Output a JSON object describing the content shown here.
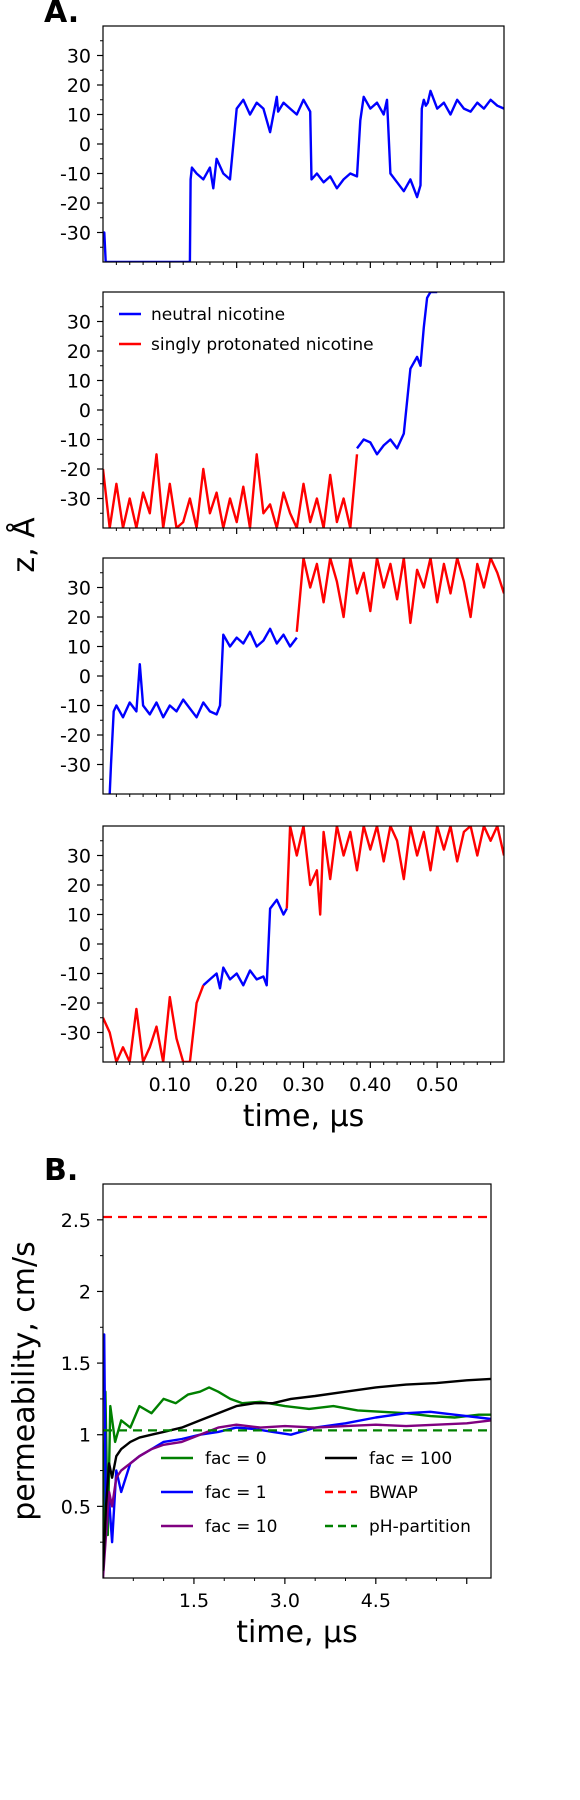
{
  "chart_data": [
    {
      "type": "line",
      "panel_label": "A.",
      "xlim": [
        0,
        0.6
      ],
      "ylim": [
        -40,
        40
      ],
      "yticks": [
        "-30",
        "-20",
        "-10",
        "0",
        "10",
        "20",
        "30"
      ],
      "series": [
        {
          "name": "neutral nicotine",
          "color": "#0000ff",
          "x": [
            0.0,
            0.002,
            0.004,
            0.13,
            0.131,
            0.133,
            0.14,
            0.15,
            0.16,
            0.165,
            0.17,
            0.18,
            0.19,
            0.2,
            0.21,
            0.22,
            0.23,
            0.24,
            0.25,
            0.26,
            0.262,
            0.27,
            0.28,
            0.29,
            0.3,
            0.31,
            0.312,
            0.32,
            0.33,
            0.34,
            0.35,
            0.36,
            0.37,
            0.38,
            0.385,
            0.39,
            0.4,
            0.41,
            0.42,
            0.425,
            0.43,
            0.44,
            0.45,
            0.46,
            0.47,
            0.475,
            0.477,
            0.48,
            0.483,
            0.486,
            0.49,
            0.5,
            0.51,
            0.52,
            0.53,
            0.54,
            0.55,
            0.56,
            0.57,
            0.58,
            0.59,
            0.6
          ],
          "y": [
            -32,
            -30,
            -40,
            -40,
            -12,
            -8,
            -10,
            -12,
            -8,
            -15,
            -5,
            -10,
            -12,
            12,
            15,
            10,
            14,
            12,
            4,
            16,
            11,
            14,
            12,
            10,
            15,
            11,
            -12,
            -10,
            -13,
            -11,
            -15,
            -12,
            -10,
            -11,
            8,
            16,
            12,
            14,
            10,
            15,
            -10,
            -13,
            -16,
            -12,
            -18,
            -14,
            12,
            15,
            13,
            14,
            18,
            12,
            14,
            10,
            15,
            12,
            11,
            14,
            12,
            15,
            13,
            12
          ]
        }
      ]
    },
    {
      "type": "line",
      "xlim": [
        0,
        0.6
      ],
      "ylim": [
        -40,
        40
      ],
      "yticks": [
        "-30",
        "-20",
        "-10",
        "0",
        "10",
        "20",
        "30"
      ],
      "legend": "top-left",
      "series": [
        {
          "name": "neutral nicotine",
          "color": "#0000ff",
          "x": [
            0.38,
            0.39,
            0.4,
            0.41,
            0.42,
            0.43,
            0.44,
            0.45,
            0.46,
            0.47,
            0.475,
            0.48,
            0.485,
            0.49,
            0.5
          ],
          "y": [
            -13,
            -10,
            -11,
            -15,
            -12,
            -10,
            -13,
            -8,
            14,
            18,
            15,
            28,
            38,
            40,
            40
          ]
        },
        {
          "name": "singly protonated nicotine",
          "color": "#ff0000",
          "x": [
            0.0,
            0.01,
            0.02,
            0.03,
            0.04,
            0.05,
            0.06,
            0.07,
            0.08,
            0.09,
            0.1,
            0.11,
            0.12,
            0.13,
            0.14,
            0.15,
            0.16,
            0.17,
            0.18,
            0.19,
            0.2,
            0.21,
            0.22,
            0.23,
            0.24,
            0.25,
            0.26,
            0.27,
            0.28,
            0.29,
            0.3,
            0.31,
            0.32,
            0.33,
            0.34,
            0.35,
            0.36,
            0.37,
            0.38
          ],
          "y": [
            -20,
            -40,
            -25,
            -40,
            -30,
            -40,
            -28,
            -35,
            -15,
            -40,
            -25,
            -40,
            -38,
            -30,
            -40,
            -20,
            -35,
            -28,
            -40,
            -30,
            -38,
            -26,
            -40,
            -15,
            -35,
            -32,
            -40,
            -28,
            -35,
            -40,
            -25,
            -38,
            -30,
            -40,
            -22,
            -38,
            -30,
            -40,
            -15
          ]
        }
      ]
    },
    {
      "type": "line",
      "xlim": [
        0,
        0.6
      ],
      "ylim": [
        -40,
        40
      ],
      "yticks": [
        "-30",
        "-20",
        "-10",
        "0",
        "10",
        "20",
        "30"
      ],
      "series": [
        {
          "name": "neutral nicotine",
          "color": "#0000ff",
          "x": [
            0.01,
            0.012,
            0.016,
            0.02,
            0.03,
            0.04,
            0.05,
            0.055,
            0.06,
            0.07,
            0.08,
            0.09,
            0.1,
            0.11,
            0.12,
            0.13,
            0.14,
            0.15,
            0.16,
            0.17,
            0.175,
            0.18,
            0.19,
            0.2,
            0.21,
            0.22,
            0.23,
            0.24,
            0.25,
            0.26,
            0.27,
            0.28,
            0.29
          ],
          "y": [
            -40,
            -30,
            -12,
            -10,
            -14,
            -9,
            -12,
            4,
            -10,
            -13,
            -9,
            -14,
            -10,
            -12,
            -8,
            -11,
            -14,
            -9,
            -12,
            -13,
            -10,
            14,
            10,
            13,
            11,
            15,
            10,
            12,
            16,
            11,
            14,
            10,
            13
          ]
        },
        {
          "name": "singly protonated nicotine",
          "color": "#ff0000",
          "x": [
            0.29,
            0.3,
            0.31,
            0.32,
            0.33,
            0.34,
            0.35,
            0.36,
            0.37,
            0.38,
            0.39,
            0.4,
            0.41,
            0.42,
            0.43,
            0.44,
            0.45,
            0.46,
            0.47,
            0.48,
            0.49,
            0.5,
            0.51,
            0.52,
            0.53,
            0.54,
            0.55,
            0.56,
            0.57,
            0.58,
            0.59,
            0.6
          ],
          "y": [
            15,
            40,
            30,
            38,
            25,
            40,
            32,
            20,
            40,
            28,
            35,
            22,
            40,
            30,
            38,
            26,
            40,
            18,
            36,
            30,
            40,
            25,
            38,
            28,
            40,
            32,
            20,
            38,
            30,
            40,
            35,
            28
          ]
        }
      ]
    },
    {
      "type": "line",
      "xlim": [
        0,
        0.6
      ],
      "ylim": [
        -40,
        40
      ],
      "xticks": [
        "0.10",
        "0.20",
        "0.30",
        "0.40",
        "0.50"
      ],
      "yticks": [
        "-30",
        "-20",
        "-10",
        "0",
        "10",
        "20",
        "30"
      ],
      "xlabel": "time, μs",
      "series": [
        {
          "name": "neutral nicotine",
          "color": "#0000ff",
          "x": [
            0.15,
            0.16,
            0.17,
            0.175,
            0.18,
            0.19,
            0.2,
            0.21,
            0.22,
            0.23,
            0.24,
            0.245,
            0.25,
            0.26,
            0.27,
            0.275
          ],
          "y": [
            -14,
            -12,
            -10,
            -15,
            -8,
            -12,
            -10,
            -14,
            -9,
            -12,
            -11,
            -14,
            12,
            15,
            10,
            12
          ]
        },
        {
          "name": "singly protonated nicotine",
          "color": "#ff0000",
          "x": [
            0.0,
            0.01,
            0.02,
            0.03,
            0.04,
            0.05,
            0.06,
            0.07,
            0.08,
            0.09,
            0.1,
            0.11,
            0.12,
            0.13,
            0.14,
            0.15
          ],
          "y": [
            -25,
            -30,
            -40,
            -35,
            -40,
            -22,
            -40,
            -35,
            -28,
            -40,
            -18,
            -32,
            -40,
            -40,
            -20,
            -14
          ]
        },
        {
          "name": "singly protonated nicotine",
          "color": "#ff0000",
          "x": [
            0.275,
            0.28,
            0.29,
            0.3,
            0.31,
            0.32,
            0.325,
            0.33,
            0.34,
            0.35,
            0.36,
            0.37,
            0.38,
            0.39,
            0.4,
            0.41,
            0.42,
            0.43,
            0.44,
            0.45,
            0.46,
            0.47,
            0.48,
            0.49,
            0.5,
            0.51,
            0.52,
            0.53,
            0.54,
            0.55,
            0.56,
            0.57,
            0.58,
            0.59,
            0.6
          ],
          "y": [
            12,
            40,
            30,
            40,
            20,
            25,
            10,
            38,
            22,
            40,
            30,
            38,
            25,
            40,
            32,
            40,
            28,
            40,
            35,
            22,
            40,
            30,
            38,
            25,
            40,
            32,
            40,
            28,
            38,
            40,
            30,
            40,
            35,
            40,
            30
          ]
        }
      ]
    },
    {
      "type": "line",
      "panel_label": "B.",
      "xlim": [
        0,
        6.4
      ],
      "ylim": [
        0,
        2.75
      ],
      "xticks": [
        "1.5",
        "3.0",
        "4.5"
      ],
      "yticks": [
        "0.5",
        "1",
        "1.5",
        "2",
        "2.5"
      ],
      "xlabel": "time, μs",
      "ylabel": "permeability, cm/s",
      "legend": "bottom-center",
      "series": [
        {
          "name": "fac = 0",
          "color": "#008000",
          "x": [
            0.0,
            0.04,
            0.08,
            0.12,
            0.2,
            0.3,
            0.45,
            0.6,
            0.8,
            1.0,
            1.2,
            1.4,
            1.6,
            1.75,
            1.9,
            2.1,
            2.3,
            2.6,
            3.0,
            3.4,
            3.8,
            4.2,
            4.6,
            5.0,
            5.4,
            5.8,
            6.2,
            6.4
          ],
          "y": [
            0.0,
            1.3,
            0.3,
            1.2,
            0.95,
            1.1,
            1.05,
            1.2,
            1.15,
            1.25,
            1.22,
            1.28,
            1.3,
            1.33,
            1.3,
            1.25,
            1.22,
            1.23,
            1.2,
            1.18,
            1.2,
            1.17,
            1.16,
            1.15,
            1.13,
            1.12,
            1.14,
            1.14
          ]
        },
        {
          "name": "fac = 1",
          "color": "#0000ff",
          "x": [
            0.0,
            0.02,
            0.05,
            0.1,
            0.15,
            0.22,
            0.3,
            0.45,
            0.6,
            0.8,
            1.0,
            1.3,
            1.6,
            1.9,
            2.2,
            2.5,
            2.8,
            3.1,
            3.5,
            4.0,
            4.5,
            5.0,
            5.4,
            5.8,
            6.2,
            6.4
          ],
          "y": [
            1.5,
            1.7,
            0.3,
            0.55,
            0.25,
            0.75,
            0.6,
            0.8,
            0.85,
            0.9,
            0.95,
            0.97,
            1.0,
            1.02,
            1.05,
            1.04,
            1.02,
            1.0,
            1.05,
            1.08,
            1.12,
            1.15,
            1.16,
            1.14,
            1.12,
            1.11
          ]
        },
        {
          "name": "fac = 10",
          "color": "#800080",
          "x": [
            0.0,
            0.05,
            0.1,
            0.15,
            0.22,
            0.3,
            0.45,
            0.6,
            0.8,
            1.0,
            1.3,
            1.6,
            1.9,
            2.2,
            2.6,
            3.0,
            3.5,
            4.0,
            4.5,
            5.0,
            5.5,
            6.0,
            6.4
          ],
          "y": [
            0.0,
            0.3,
            0.6,
            0.5,
            0.7,
            0.75,
            0.8,
            0.85,
            0.9,
            0.93,
            0.95,
            1.0,
            1.05,
            1.07,
            1.05,
            1.06,
            1.05,
            1.06,
            1.07,
            1.06,
            1.07,
            1.08,
            1.1
          ]
        },
        {
          "name": "fac = 100",
          "color": "#000000",
          "x": [
            0.0,
            0.05,
            0.1,
            0.15,
            0.22,
            0.3,
            0.45,
            0.6,
            0.8,
            1.0,
            1.3,
            1.6,
            1.9,
            2.2,
            2.5,
            2.8,
            3.1,
            3.5,
            4.0,
            4.5,
            5.0,
            5.5,
            6.0,
            6.4
          ],
          "y": [
            0.05,
            0.5,
            0.8,
            0.7,
            0.85,
            0.9,
            0.95,
            0.98,
            1.0,
            1.02,
            1.05,
            1.1,
            1.15,
            1.2,
            1.22,
            1.22,
            1.25,
            1.27,
            1.3,
            1.33,
            1.35,
            1.36,
            1.38,
            1.39
          ]
        },
        {
          "name": "BWAP",
          "color": "#ff0000",
          "dashed": true,
          "x": [
            0,
            6.4
          ],
          "y": [
            2.52,
            2.52
          ]
        },
        {
          "name": "pH-partition",
          "color": "#008000",
          "dashed": true,
          "x": [
            0,
            6.4
          ],
          "y": [
            1.03,
            1.03
          ]
        }
      ]
    }
  ],
  "shared_ylabel": "z, Å"
}
